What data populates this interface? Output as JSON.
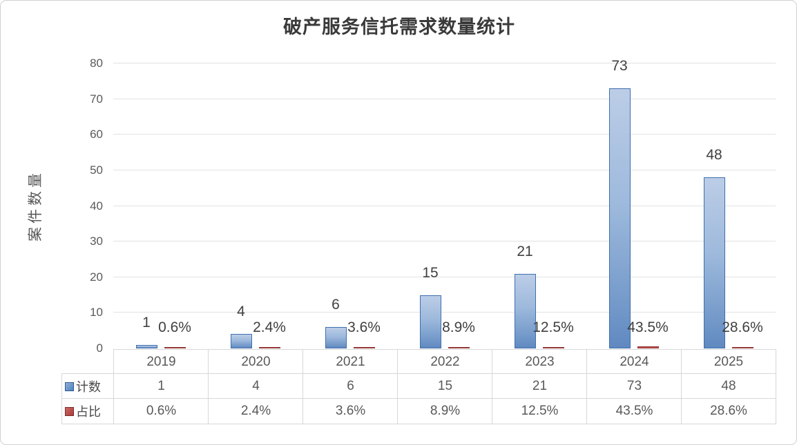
{
  "chart_data": {
    "type": "bar",
    "title": "破产服务信托需求数量统计",
    "ylabel": "案件数量",
    "xlabel": "",
    "categories": [
      "2019",
      "2020",
      "2021",
      "2022",
      "2023",
      "2024",
      "2025"
    ],
    "series": [
      {
        "name": "计数",
        "values": [
          1,
          4,
          6,
          15,
          21,
          73,
          48
        ],
        "labels": [
          "1",
          "4",
          "6",
          "15",
          "21",
          "73",
          "48"
        ],
        "color": "#4f81bd"
      },
      {
        "name": "占比",
        "values": [
          0.6,
          2.4,
          3.6,
          8.9,
          12.5,
          43.5,
          28.6
        ],
        "labels": [
          "0.6%",
          "2.4%",
          "3.6%",
          "8.9%",
          "12.5%",
          "43.5%",
          "28.6%"
        ],
        "color": "#c0504d",
        "note": "percent values plotted as tiny slivers near the baseline of the count axis"
      }
    ],
    "ylim": [
      0,
      80
    ],
    "yticks": [
      0,
      10,
      20,
      30,
      40,
      50,
      60,
      70,
      80
    ],
    "grid": true,
    "legend_position": "data-table-row-headers"
  },
  "table": {
    "columns": [
      "2019",
      "2020",
      "2021",
      "2022",
      "2023",
      "2024",
      "2025"
    ],
    "rows": [
      {
        "label": "计数",
        "values": [
          "1",
          "4",
          "6",
          "15",
          "21",
          "73",
          "48"
        ]
      },
      {
        "label": "占比",
        "values": [
          "0.6%",
          "2.4%",
          "3.6%",
          "8.9%",
          "12.5%",
          "43.5%",
          "28.6%"
        ]
      }
    ]
  },
  "colors": {
    "count_fill_top": "#bccde7",
    "count_fill_bottom": "#6089c0",
    "count_border": "#3f6fae",
    "pct_fill": "#c0504d",
    "pct_border": "#953735",
    "gridline": "#e2e2e2",
    "axis_text": "#595959",
    "data_label_text": "#404040",
    "table_border": "#d7d7d7"
  }
}
